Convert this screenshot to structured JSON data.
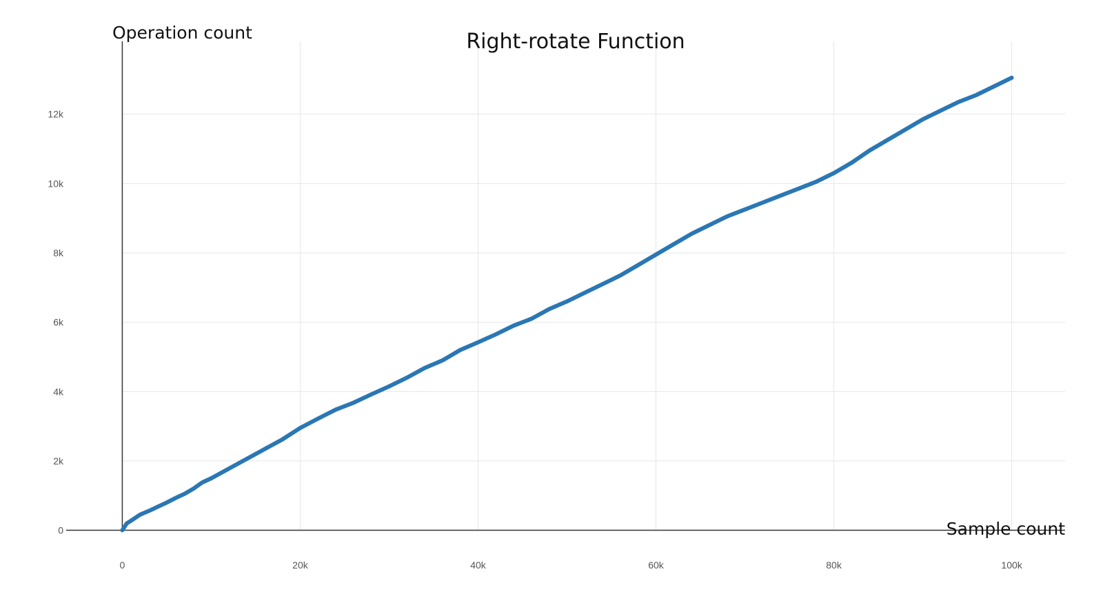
{
  "chart_data": {
    "type": "line",
    "title": "Right-rotate Function",
    "xlabel": "Sample count",
    "ylabel": "Operation count",
    "xlim": [
      -6000,
      106000
    ],
    "ylim": [
      -1400,
      14100
    ],
    "x_ticks": [
      0,
      20000,
      40000,
      60000,
      80000,
      100000
    ],
    "x_tick_labels": [
      "0",
      "20k",
      "40k",
      "60k",
      "80k",
      "100k"
    ],
    "y_ticks": [
      0,
      2000,
      4000,
      6000,
      8000,
      10000,
      12000
    ],
    "y_tick_labels": [
      "0",
      "2k",
      "4k",
      "6k",
      "8k",
      "10k",
      "12k"
    ],
    "grid": true,
    "series": [
      {
        "color": "#2a77b4",
        "x": [
          0,
          500,
          1000,
          2000,
          3000,
          4000,
          5000,
          6000,
          7000,
          8000,
          9000,
          10000,
          12000,
          14000,
          16000,
          18000,
          20000,
          22000,
          24000,
          26000,
          28000,
          30000,
          32000,
          34000,
          36000,
          38000,
          40000,
          42000,
          44000,
          46000,
          48000,
          50000,
          52000,
          54000,
          56000,
          58000,
          60000,
          62000,
          64000,
          66000,
          68000,
          70000,
          72000,
          74000,
          76000,
          78000,
          80000,
          82000,
          84000,
          86000,
          88000,
          90000,
          92000,
          94000,
          96000,
          98000,
          100000
        ],
        "y": [
          0,
          200,
          280,
          450,
          560,
          680,
          800,
          930,
          1050,
          1200,
          1380,
          1500,
          1780,
          2060,
          2340,
          2620,
          2950,
          3220,
          3480,
          3680,
          3920,
          4150,
          4400,
          4680,
          4900,
          5200,
          5420,
          5650,
          5900,
          6100,
          6380,
          6600,
          6850,
          7100,
          7350,
          7650,
          7950,
          8250,
          8550,
          8800,
          9050,
          9250,
          9450,
          9650,
          9850,
          10050,
          10300,
          10600,
          10950,
          11250,
          11550,
          11850,
          12100,
          12350,
          12550,
          12800,
          13050
        ]
      }
    ]
  }
}
